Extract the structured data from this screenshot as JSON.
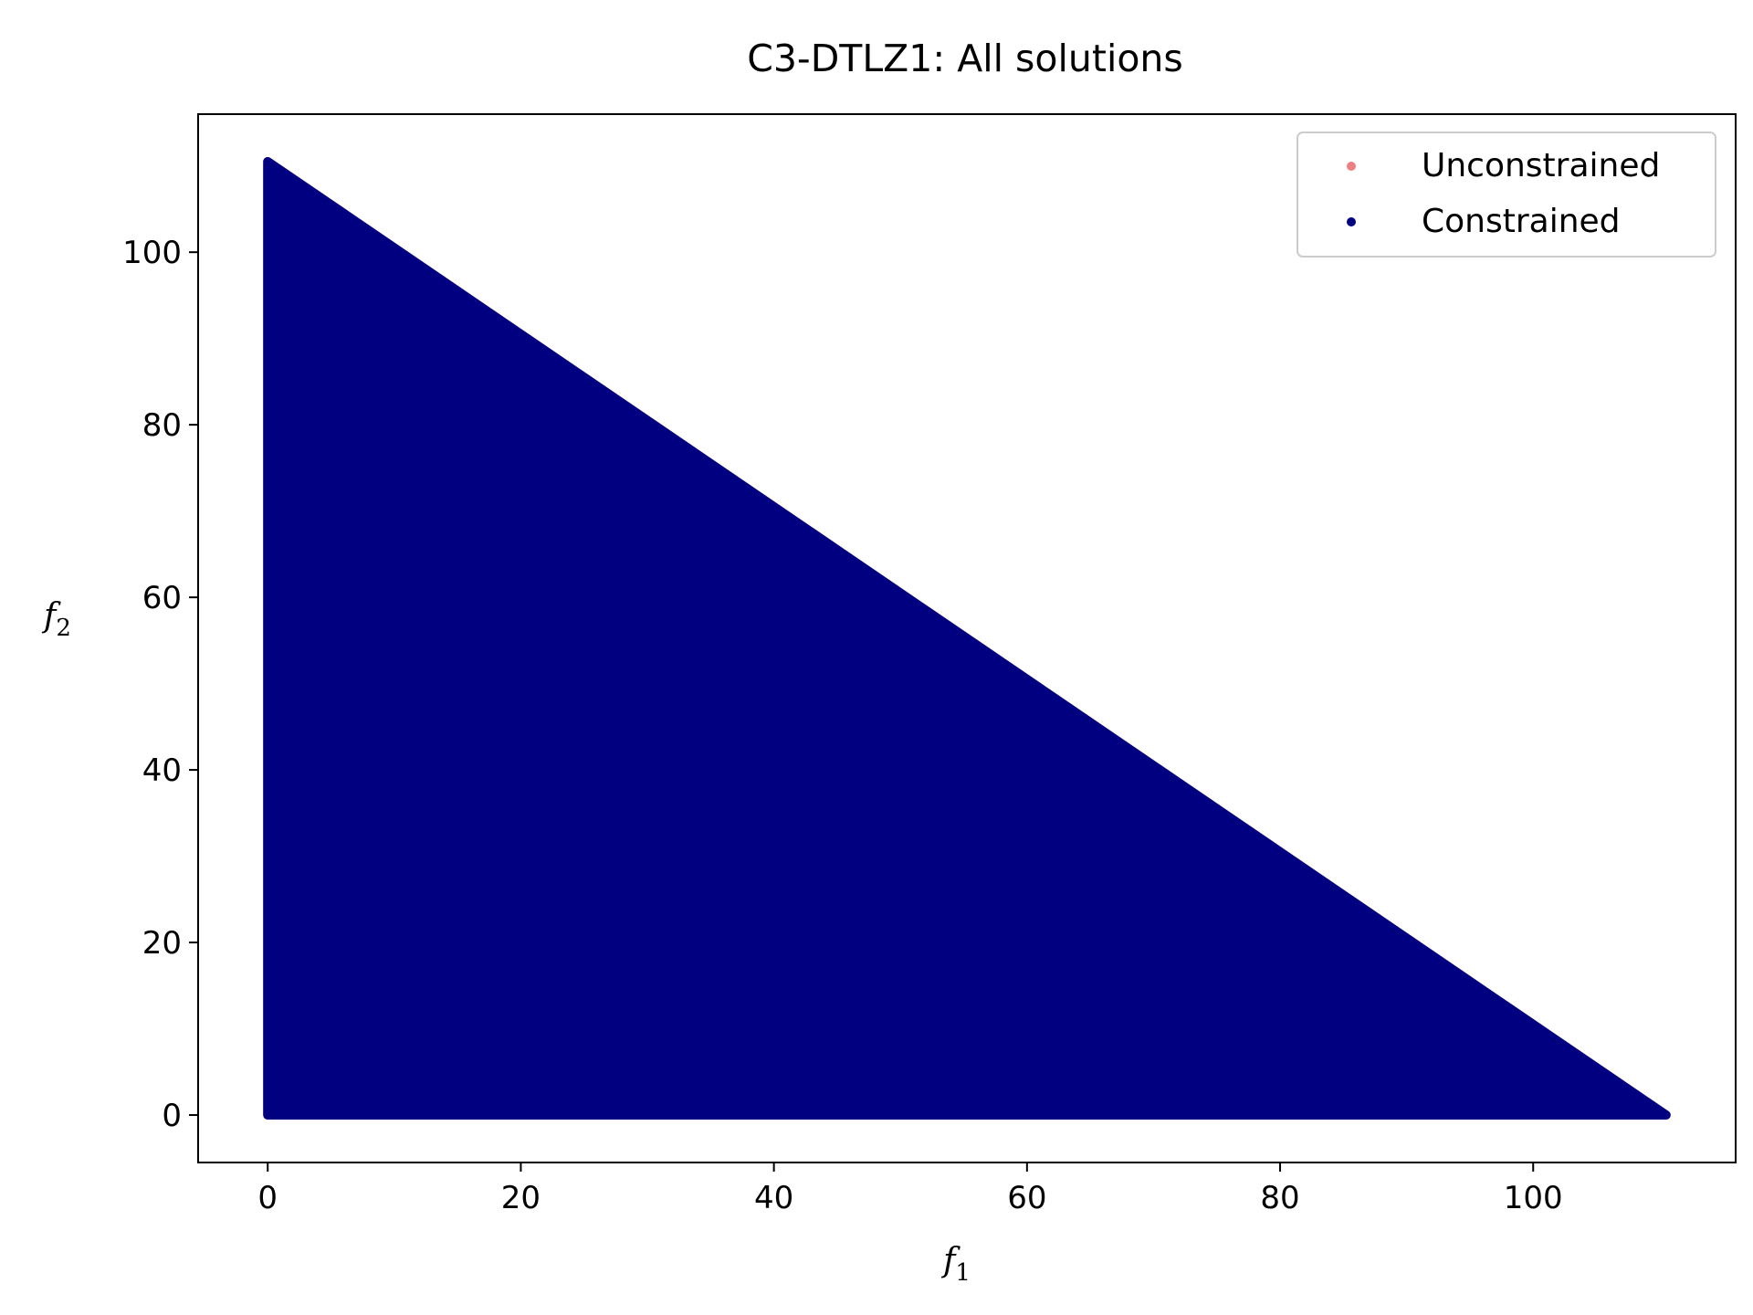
{
  "chart_data": {
    "type": "scatter",
    "title": "C3-DTLZ1: All solutions",
    "xlabel": "f",
    "xlabel_sub": "1",
    "ylabel": "f",
    "ylabel_sub": "2",
    "xlim": [
      -5.5,
      116.0
    ],
    "ylim": [
      -5.5,
      116.0
    ],
    "xticks": [
      0,
      20,
      40,
      60,
      80,
      100
    ],
    "yticks": [
      0,
      20,
      40,
      60,
      80,
      100
    ],
    "grid": false,
    "legend_position": "top-right",
    "series": [
      {
        "name": "Unconstrained",
        "color": "#f08080",
        "region": "triangle",
        "vertices": [
          [
            0,
            0
          ],
          [
            110.5,
            0
          ],
          [
            0,
            110.5
          ]
        ]
      },
      {
        "name": "Constrained",
        "color": "#000080",
        "region": "triangle",
        "vertices": [
          [
            0,
            0
          ],
          [
            110.5,
            0
          ],
          [
            0,
            110.5
          ]
        ]
      }
    ]
  }
}
